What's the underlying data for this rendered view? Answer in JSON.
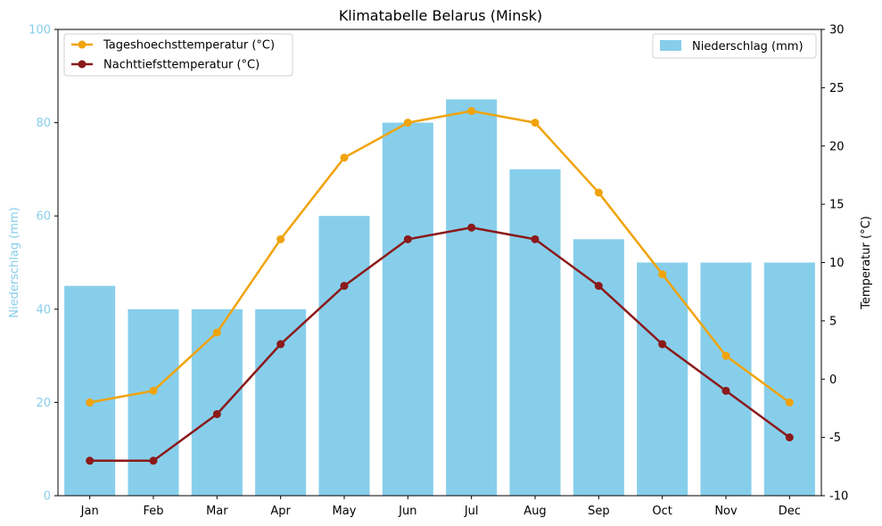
{
  "chart_data": {
    "type": "bar+line",
    "title": "Klimatabelle Belarus (Minsk)",
    "categories": [
      "Jan",
      "Feb",
      "Mar",
      "Apr",
      "May",
      "Jun",
      "Jul",
      "Aug",
      "Sep",
      "Oct",
      "Nov",
      "Dec"
    ],
    "bar_series": {
      "name": "Niederschlag (mm)",
      "values": [
        45,
        40,
        40,
        40,
        60,
        80,
        85,
        70,
        55,
        50,
        50,
        50
      ],
      "color": "#87ceeb"
    },
    "line_series": [
      {
        "name": "Tageshoechsttemperatur (°C)",
        "values": [
          -2,
          -1,
          4,
          12,
          19,
          22,
          23,
          22,
          16,
          9,
          2,
          -2
        ],
        "color": "#f0a30a"
      },
      {
        "name": "Nachttiefsttemperatur (°C)",
        "values": [
          -7,
          -7,
          -3,
          3,
          8,
          12,
          13,
          12,
          8,
          3,
          -1,
          -5
        ],
        "color": "#8b1a1a"
      }
    ],
    "y_left": {
      "label": "Niederschlag (mm)",
      "lim": [
        0,
        100
      ],
      "ticks": [
        0,
        20,
        40,
        60,
        80,
        100
      ],
      "color": "#87ceeb"
    },
    "y_right": {
      "label": "Temperatur (°C)",
      "lim": [
        -10,
        30
      ],
      "ticks": [
        -10,
        -5,
        0,
        5,
        10,
        15,
        20,
        25,
        30
      ],
      "color": "#000000"
    },
    "grid": false,
    "legend_lines_placement": "top-left",
    "legend_bars_placement": "top-right"
  }
}
